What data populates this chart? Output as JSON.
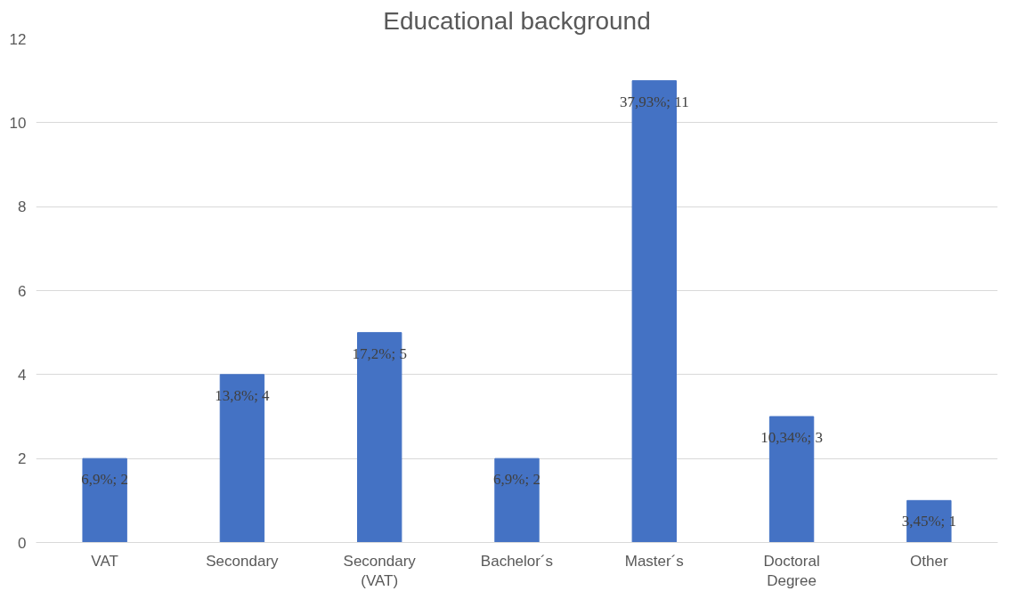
{
  "chart_data": {
    "type": "bar",
    "title": "Educational background",
    "categories": [
      "VAT",
      "Secondary",
      "Secondary\n(VAT)",
      "Bachelor´s",
      "Master´s",
      "Doctoral\nDegree",
      "Other"
    ],
    "values": [
      2,
      4,
      5,
      2,
      11,
      3,
      1
    ],
    "value_labels": [
      "6,9%; 2",
      "13,8%; 4",
      "17,2%; 5",
      "6,9%; 2",
      "37,93%; 11",
      "10,34%; 3",
      "3,45%; 1"
    ],
    "color": "#4472c4",
    "ylim": [
      0,
      12
    ],
    "yticks": [
      0,
      2,
      4,
      6,
      8,
      10,
      12
    ],
    "grid": "y"
  }
}
